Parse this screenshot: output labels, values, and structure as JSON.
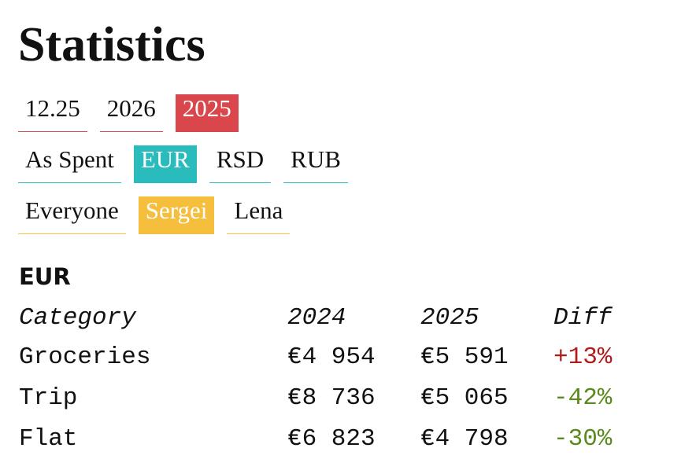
{
  "header": {
    "title": "Statistics"
  },
  "filters": [
    {
      "color": "#d9464b",
      "items": [
        {
          "label": "12.25"
        },
        {
          "label": "2026"
        },
        {
          "label": "2025",
          "active": true
        }
      ]
    },
    {
      "color": "#2abcbc",
      "items": [
        {
          "label": "As Spent"
        },
        {
          "label": "EUR",
          "active": true
        },
        {
          "label": "RSD"
        },
        {
          "label": "RUB"
        }
      ]
    },
    {
      "color": "#f5be3c",
      "items": [
        {
          "label": "Everyone"
        },
        {
          "label": "Sergei",
          "active": true
        },
        {
          "label": "Lena"
        }
      ]
    }
  ],
  "section": {
    "title": "EUR"
  },
  "table": {
    "header": [
      "Category",
      "2024",
      "2025",
      "Diff"
    ],
    "rows": [
      [
        "Groceries",
        "€4 954",
        "€5 591",
        "+13%"
      ],
      [
        "Trip",
        "€8 736",
        "€5 065",
        "-42%"
      ],
      [
        "Flat",
        "€6 823",
        "€4 798",
        "-30%"
      ]
    ]
  }
}
